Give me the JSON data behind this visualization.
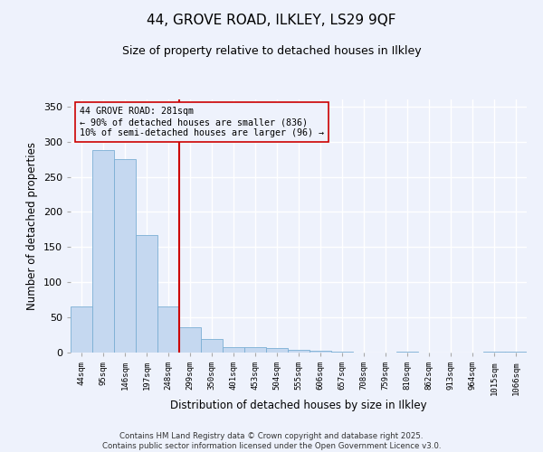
{
  "title1": "44, GROVE ROAD, ILKLEY, LS29 9QF",
  "title2": "Size of property relative to detached houses in Ilkley",
  "xlabel": "Distribution of detached houses by size in Ilkley",
  "ylabel": "Number of detached properties",
  "bar_labels": [
    "44sqm",
    "95sqm",
    "146sqm",
    "197sqm",
    "248sqm",
    "299sqm",
    "350sqm",
    "401sqm",
    "453sqm",
    "504sqm",
    "555sqm",
    "606sqm",
    "657sqm",
    "708sqm",
    "759sqm",
    "810sqm",
    "862sqm",
    "913sqm",
    "964sqm",
    "1015sqm",
    "1066sqm"
  ],
  "bar_values": [
    65,
    288,
    275,
    167,
    65,
    36,
    19,
    8,
    8,
    6,
    4,
    3,
    1,
    0,
    0,
    1,
    0,
    0,
    0,
    1,
    1
  ],
  "bar_color": "#c5d8f0",
  "bar_edgecolor": "#7bafd4",
  "vline_x_index": 5,
  "vline_color": "#cc0000",
  "annotation_text": "44 GROVE ROAD: 281sqm\n← 90% of detached houses are smaller (836)\n10% of semi-detached houses are larger (96) →",
  "annotation_box_edgecolor": "#cc0000",
  "ylim": [
    0,
    360
  ],
  "yticks": [
    0,
    50,
    100,
    150,
    200,
    250,
    300,
    350
  ],
  "background_color": "#eef2fc",
  "grid_color": "#ffffff",
  "footer": "Contains HM Land Registry data © Crown copyright and database right 2025.\nContains public sector information licensed under the Open Government Licence v3.0."
}
